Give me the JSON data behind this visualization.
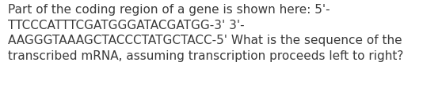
{
  "text": "Part of the coding region of a gene is shown here: 5'-\nTTCCCATTTCGATGGGATACGATGG-3' 3'-\nAAGGGTAAAGCTACCCTATGCTACC-5' What is the sequence of the\ntranscribed mRNA, assuming transcription proceeds left to right?",
  "font_size": 11.0,
  "font_color": "#3a3a3a",
  "background_color": "#ffffff",
  "fig_width": 5.58,
  "fig_height": 1.26,
  "dpi": 100
}
